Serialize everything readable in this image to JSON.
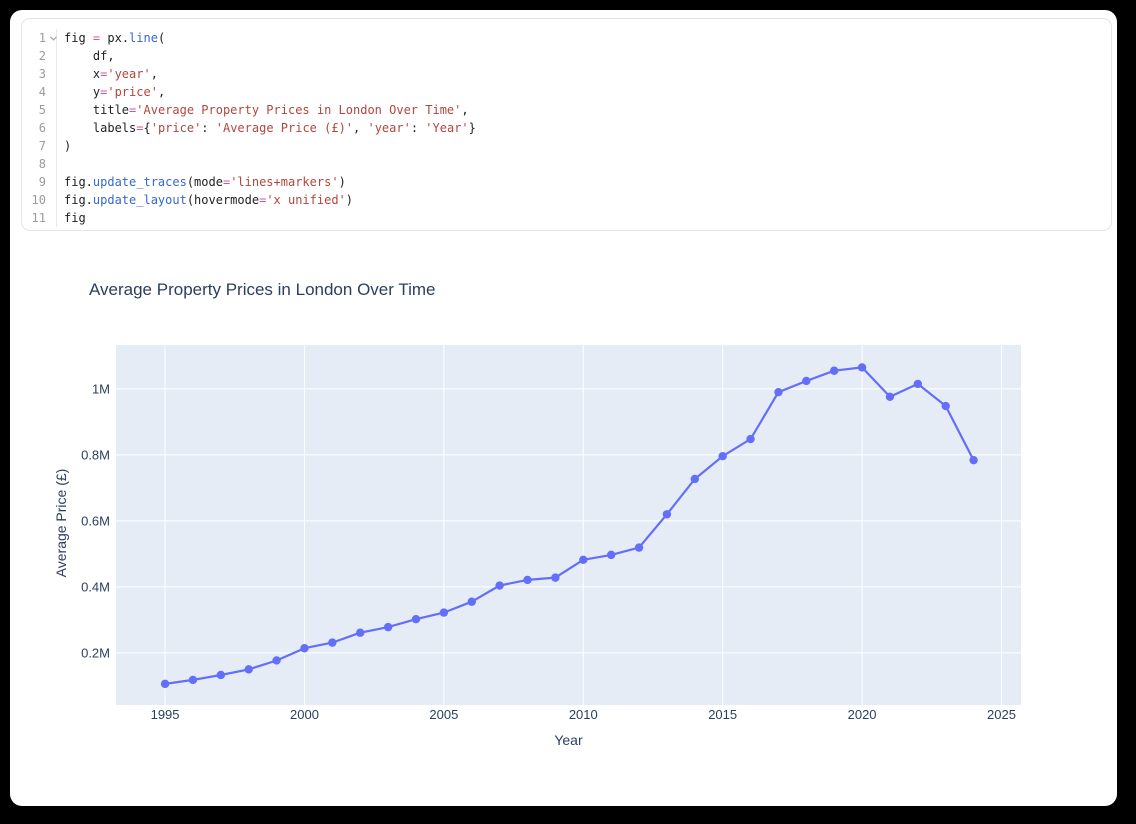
{
  "window": {
    "background": "#000000",
    "card_background": "#ffffff"
  },
  "code_cell": {
    "language": "python",
    "colors": {
      "plain": "#1f1f1f",
      "operator": "#d8539e",
      "string": "#b2463e",
      "function": "#3569cb",
      "line_number": "#9b9b9b"
    },
    "lines": [
      {
        "num": "1",
        "fold": true,
        "tokens": [
          [
            "fig ",
            "p"
          ],
          [
            "=",
            "o"
          ],
          [
            " px.",
            "p"
          ],
          [
            "line",
            "f"
          ],
          [
            "(",
            "p"
          ]
        ]
      },
      {
        "num": "2",
        "fold": false,
        "tokens": [
          [
            "    df,",
            "p"
          ]
        ]
      },
      {
        "num": "3",
        "fold": false,
        "tokens": [
          [
            "    x",
            "p"
          ],
          [
            "=",
            "o"
          ],
          [
            "'year'",
            "s"
          ],
          [
            ",",
            "p"
          ]
        ]
      },
      {
        "num": "4",
        "fold": false,
        "tokens": [
          [
            "    y",
            "p"
          ],
          [
            "=",
            "o"
          ],
          [
            "'price'",
            "s"
          ],
          [
            ",",
            "p"
          ]
        ]
      },
      {
        "num": "5",
        "fold": false,
        "tokens": [
          [
            "    title",
            "p"
          ],
          [
            "=",
            "o"
          ],
          [
            "'Average Property Prices in London Over Time'",
            "s"
          ],
          [
            ",",
            "p"
          ]
        ]
      },
      {
        "num": "6",
        "fold": false,
        "tokens": [
          [
            "    labels",
            "p"
          ],
          [
            "=",
            "o"
          ],
          [
            "{",
            "p"
          ],
          [
            "'price'",
            "s"
          ],
          [
            ": ",
            "p"
          ],
          [
            "'Average Price (£)'",
            "s"
          ],
          [
            ", ",
            "p"
          ],
          [
            "'year'",
            "s"
          ],
          [
            ": ",
            "p"
          ],
          [
            "'Year'",
            "s"
          ],
          [
            "}",
            "p"
          ]
        ]
      },
      {
        "num": "7",
        "fold": false,
        "tokens": [
          [
            ")",
            "p"
          ]
        ]
      },
      {
        "num": "8",
        "fold": false,
        "tokens": []
      },
      {
        "num": "9",
        "fold": false,
        "tokens": [
          [
            "fig.",
            "p"
          ],
          [
            "update_traces",
            "f"
          ],
          [
            "(mode",
            "p"
          ],
          [
            "=",
            "o"
          ],
          [
            "'lines+markers'",
            "s"
          ],
          [
            ")",
            "p"
          ]
        ]
      },
      {
        "num": "10",
        "fold": false,
        "tokens": [
          [
            "fig.",
            "p"
          ],
          [
            "update_layout",
            "f"
          ],
          [
            "(hovermode",
            "p"
          ],
          [
            "=",
            "o"
          ],
          [
            "'x unified'",
            "s"
          ],
          [
            ")",
            "p"
          ]
        ]
      },
      {
        "num": "11",
        "fold": false,
        "tokens": [
          [
            "fig",
            "p"
          ]
        ]
      }
    ]
  },
  "chart_data": {
    "type": "line",
    "mode": "lines+markers",
    "title": "Average Property Prices in London Over Time",
    "xlabel": "Year",
    "ylabel": "Average Price (£)",
    "x": [
      1995,
      1996,
      1997,
      1998,
      1999,
      2000,
      2001,
      2002,
      2003,
      2004,
      2005,
      2006,
      2007,
      2008,
      2009,
      2010,
      2011,
      2012,
      2013,
      2014,
      2015,
      2016,
      2017,
      2018,
      2019,
      2020,
      2021,
      2022,
      2023,
      2024
    ],
    "y_millions": [
      0.106,
      0.118,
      0.133,
      0.15,
      0.177,
      0.214,
      0.231,
      0.261,
      0.278,
      0.302,
      0.322,
      0.355,
      0.404,
      0.421,
      0.428,
      0.482,
      0.497,
      0.519,
      0.62,
      0.727,
      0.796,
      0.848,
      0.99,
      1.024,
      1.055,
      1.065,
      0.976,
      1.015,
      0.948,
      0.784
    ],
    "xtick_values": [
      1995,
      2000,
      2005,
      2010,
      2015,
      2020,
      2025
    ],
    "xtick_labels": [
      "1995",
      "2000",
      "2005",
      "2010",
      "2015",
      "2020",
      "2025"
    ],
    "ytick_values": [
      0.2,
      0.4,
      0.6,
      0.8,
      1.0
    ],
    "ytick_labels": [
      "0.2M",
      "0.4M",
      "0.6M",
      "0.8M",
      "1M"
    ],
    "xlim": [
      1993.24,
      2025.7
    ],
    "ylim_millions": [
      0.042,
      1.133
    ],
    "line_color": "#636efa",
    "plot_background": "#e5ecf6",
    "grid_color": "#ffffff",
    "text_color": "#2a3f5f",
    "legend": "none",
    "grid": "on"
  }
}
